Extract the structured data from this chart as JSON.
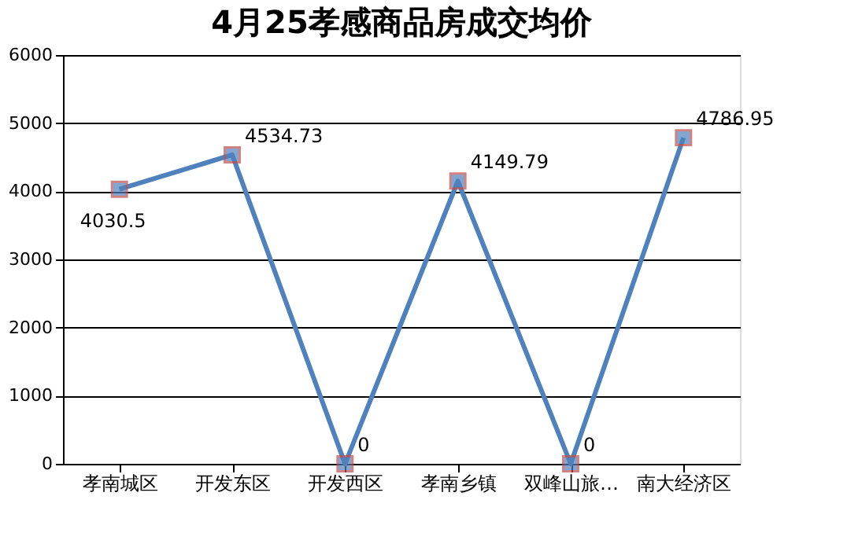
{
  "chart_data": {
    "type": "line",
    "title": "4月25孝感商品房成交均价",
    "categories": [
      "孝南城区",
      "开发东区",
      "开发西区",
      "孝南乡镇",
      "双峰山旅…",
      "南大经济区"
    ],
    "series": [
      {
        "color": "#4f81bd",
        "values": [
          4030.5,
          4534.73,
          0,
          4149.79,
          0,
          4786.95
        ]
      }
    ],
    "ylim": [
      0,
      6000
    ],
    "yticks": [
      0,
      1000,
      2000,
      3000,
      4000,
      5000,
      6000
    ],
    "grid": "y",
    "marker": "square",
    "data_labels": true
  }
}
